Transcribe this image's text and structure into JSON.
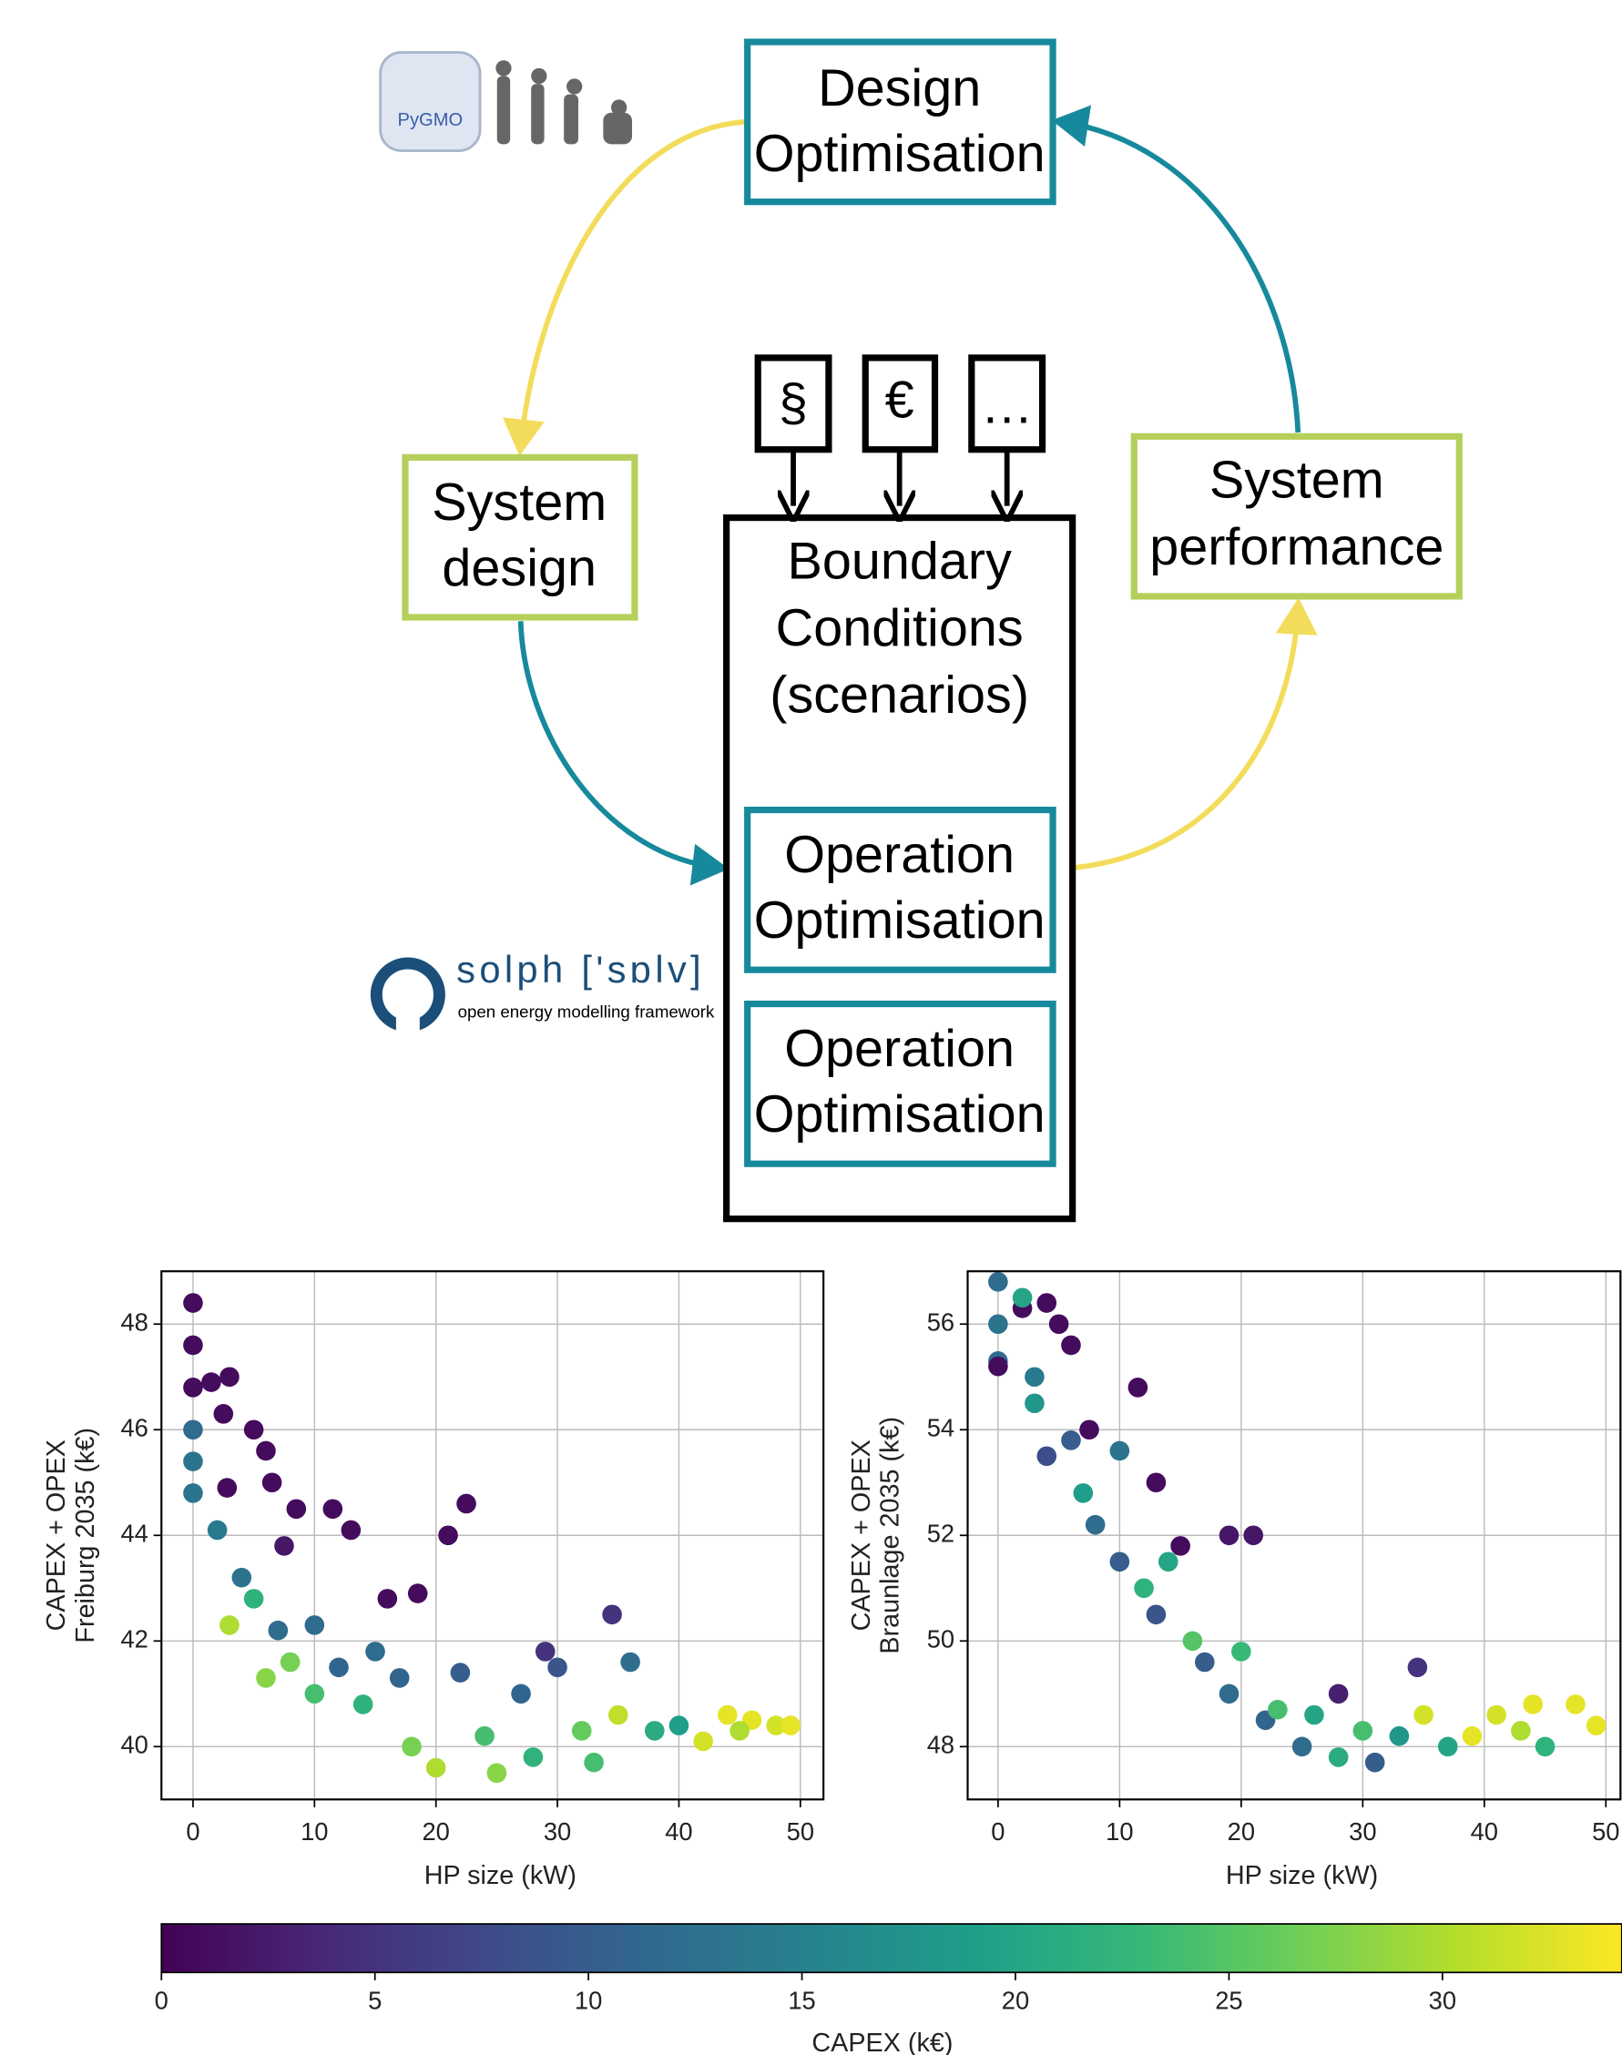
{
  "diagram": {
    "design_optimisation": [
      "Design",
      "Optimisation"
    ],
    "system_design": [
      "System",
      "design"
    ],
    "system_performance": [
      "System",
      "performance"
    ],
    "boundary_conditions": [
      "Boundary",
      "Conditions",
      "(scenarios)"
    ],
    "operation_optimisation": [
      [
        "Operation",
        "Optimisation"
      ],
      [
        "Operation",
        "Optimisation"
      ]
    ],
    "inputs": [
      "§",
      "€",
      "…"
    ],
    "logos": {
      "pygmo": "PyGMO",
      "solph": "solph ['sɒlv]",
      "solph_tagline": "open energy modelling framework"
    }
  },
  "chart_data": [
    {
      "type": "scatter",
      "x_label": "HP size (kW)",
      "y_label": [
        "CAPEX + OPEX",
        "Freiburg 2035 (k€)"
      ],
      "xlim": [
        -2.6,
        51.9
      ],
      "ylim": [
        39.0,
        49.0
      ],
      "xticks": [
        0,
        10,
        20,
        30,
        40,
        50
      ],
      "yticks": [
        40,
        42,
        44,
        46,
        48
      ],
      "grid": true,
      "x": [
        0,
        0,
        0,
        0,
        0,
        0,
        1.5,
        3,
        2.5,
        5,
        6,
        6.5,
        2.8,
        8.5,
        13,
        11.5,
        21,
        22.5,
        16,
        18.5,
        7.5,
        34.5,
        29,
        2,
        4,
        5,
        7,
        8,
        10,
        10,
        12,
        14,
        15,
        17,
        18,
        20,
        22,
        24,
        25,
        27,
        28,
        30,
        32,
        33,
        35,
        36,
        38,
        40,
        42,
        44,
        46,
        48,
        49.2,
        45,
        3,
        6
      ],
      "values": [
        48.4,
        47.6,
        46.8,
        46.0,
        45.4,
        44.8,
        46.9,
        47.0,
        46.3,
        46.0,
        45.6,
        45.0,
        44.9,
        44.5,
        44.1,
        44.5,
        44.0,
        44.6,
        42.8,
        42.9,
        43.8,
        42.5,
        41.8,
        44.1,
        43.2,
        42.8,
        42.2,
        41.6,
        42.3,
        41.0,
        41.5,
        40.8,
        41.8,
        41.3,
        40.0,
        39.6,
        41.4,
        40.2,
        39.5,
        41.0,
        39.8,
        41.5,
        40.3,
        39.7,
        40.6,
        41.6,
        40.3,
        40.4,
        40.1,
        40.6,
        40.5,
        40.4,
        40.4,
        40.3,
        42.3,
        41.3
      ],
      "capex": [
        1,
        1,
        1,
        12,
        13,
        13,
        1,
        1,
        1,
        1,
        1,
        1,
        1,
        1,
        1,
        1,
        1,
        1,
        1,
        1,
        2,
        5,
        5,
        14,
        13,
        22,
        12,
        27,
        12,
        24,
        11,
        22,
        12,
        11,
        27,
        30,
        10,
        24,
        28,
        11,
        22,
        9,
        26,
        24,
        31,
        12,
        21,
        19,
        32,
        33,
        33,
        32,
        33,
        30,
        30,
        28
      ]
    },
    {
      "type": "scatter",
      "x_label": "HP size (kW)",
      "y_label": [
        "CAPEX + OPEX",
        "Braunlage 2035 (k€)"
      ],
      "xlim": [
        -2.5,
        51.2
      ],
      "ylim": [
        47.0,
        57.0
      ],
      "xticks": [
        0,
        10,
        20,
        30,
        40,
        50
      ],
      "yticks": [
        48,
        50,
        52,
        54,
        56
      ],
      "grid": true,
      "x": [
        0,
        0,
        0,
        0,
        2,
        4,
        5,
        6,
        11.5,
        7.5,
        13,
        15,
        19,
        21,
        28,
        34.5,
        2,
        3,
        3,
        4,
        6,
        7,
        8,
        10,
        10,
        12,
        13,
        14,
        16,
        17,
        19,
        20,
        22,
        23,
        25,
        26,
        28,
        30,
        31,
        33,
        35,
        37,
        39,
        41,
        43,
        44,
        45,
        47.5,
        49.2
      ],
      "values": [
        56.8,
        56.0,
        55.3,
        55.2,
        56.3,
        56.4,
        56.0,
        55.6,
        54.8,
        54.0,
        53.0,
        51.8,
        52.0,
        52.0,
        49.0,
        49.5,
        56.5,
        55.0,
        54.5,
        53.5,
        53.8,
        52.8,
        52.2,
        53.6,
        51.5,
        51.0,
        50.5,
        51.5,
        50.0,
        49.6,
        49.0,
        49.8,
        48.5,
        48.7,
        48.0,
        48.6,
        47.8,
        48.3,
        47.7,
        48.2,
        48.6,
        48.0,
        48.2,
        48.6,
        48.3,
        48.8,
        48.0,
        48.8,
        48.4
      ],
      "capex": [
        12,
        13,
        12,
        1,
        1,
        1,
        1,
        1,
        1,
        1,
        1,
        1,
        2,
        2,
        3,
        5,
        20,
        14,
        18,
        8,
        10,
        19,
        12,
        13,
        10,
        22,
        9,
        20,
        25,
        10,
        12,
        23,
        11,
        24,
        12,
        20,
        21,
        24,
        10,
        18,
        32,
        20,
        33,
        32,
        30,
        33,
        22,
        33,
        33
      ]
    }
  ],
  "colorbar": {
    "label": "CAPEX (k€)",
    "lim": [
      0,
      34.2
    ],
    "ticks": [
      0,
      5,
      10,
      15,
      20,
      25,
      30
    ],
    "colors": [
      "#440154",
      "#482878",
      "#3e4a89",
      "#31688e",
      "#26828e",
      "#1f9e89",
      "#35b779",
      "#6ece58",
      "#b5de2b",
      "#fde725"
    ]
  }
}
